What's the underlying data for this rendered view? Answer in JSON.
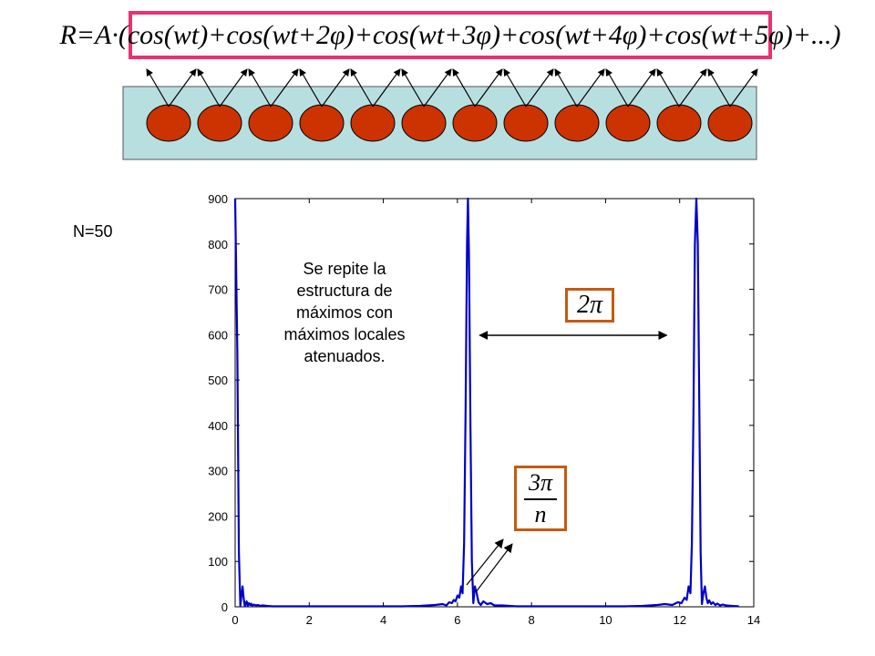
{
  "formula": {
    "text": "R=A·(cos(wt)+cos(wt+2φ)+cos(wt+3φ)+cos(wt+4φ)+cos(wt+5φ)+...)",
    "border_color": "#e8336e"
  },
  "array": {
    "sphere_count": 12,
    "sphere_color": "#cc3300",
    "background_color": "#b8dfe0"
  },
  "n_label": "N=50",
  "annotation": "Se repite la estructura de máximos con máximos locales atenuados.",
  "period_label": "2π",
  "fraction_label": {
    "numerator": "3π",
    "denominator": "n"
  },
  "box_color": "#c55a11",
  "chart_data": {
    "type": "line",
    "title": "",
    "xlabel": "",
    "ylabel": "",
    "xlim": [
      0,
      14
    ],
    "ylim": [
      0,
      900
    ],
    "xticks": [
      0,
      2,
      4,
      6,
      8,
      10,
      12,
      14
    ],
    "yticks": [
      0,
      100,
      200,
      300,
      400,
      500,
      600,
      700,
      800,
      900
    ],
    "series": [
      {
        "color": "#0000cc",
        "x": [
          0.0,
          0.06,
          0.1,
          0.14,
          0.17,
          0.2,
          0.23,
          0.26,
          0.28,
          0.31,
          0.34,
          0.37,
          0.4,
          0.43,
          0.46,
          0.5,
          0.56,
          0.62,
          0.68,
          0.75,
          0.85,
          1.0,
          1.5,
          2.5,
          3.5,
          4.5,
          5.0,
          5.4,
          5.6,
          5.7,
          5.78,
          5.85,
          5.9,
          5.95,
          6.0,
          6.05,
          6.1,
          6.14,
          6.18,
          6.22,
          6.26,
          6.283,
          6.31,
          6.35,
          6.39,
          6.43,
          6.47,
          6.52,
          6.57,
          6.63,
          6.7,
          6.8,
          6.9,
          7.0,
          7.2,
          7.6,
          8.5,
          9.5,
          10.5,
          11.0,
          11.4,
          11.6,
          11.8,
          11.95,
          12.05,
          12.13,
          12.19,
          12.24,
          12.29,
          12.33,
          12.37,
          12.41,
          12.45,
          12.49,
          12.53,
          12.566,
          12.6,
          12.64,
          12.68,
          12.72,
          12.76,
          12.8,
          12.85,
          12.9,
          12.96,
          13.02,
          13.09,
          13.16,
          13.25,
          13.4,
          13.6
        ],
        "y": [
          900,
          560,
          120,
          2,
          25,
          45,
          20,
          1,
          6,
          12,
          2,
          8,
          4,
          7,
          2,
          5,
          3,
          4,
          2,
          3,
          2,
          1,
          1,
          1,
          1,
          1,
          2,
          4,
          6,
          3,
          10,
          8,
          15,
          12,
          25,
          20,
          45,
          30,
          140,
          430,
          800,
          900,
          780,
          410,
          100,
          8,
          45,
          30,
          10,
          4,
          12,
          6,
          8,
          3,
          3,
          1,
          1,
          1,
          1,
          2,
          4,
          6,
          4,
          10,
          8,
          20,
          15,
          45,
          30,
          140,
          420,
          800,
          900,
          800,
          430,
          120,
          6,
          30,
          45,
          20,
          8,
          14,
          6,
          10,
          4,
          7,
          3,
          5,
          3,
          2,
          1
        ]
      }
    ]
  }
}
